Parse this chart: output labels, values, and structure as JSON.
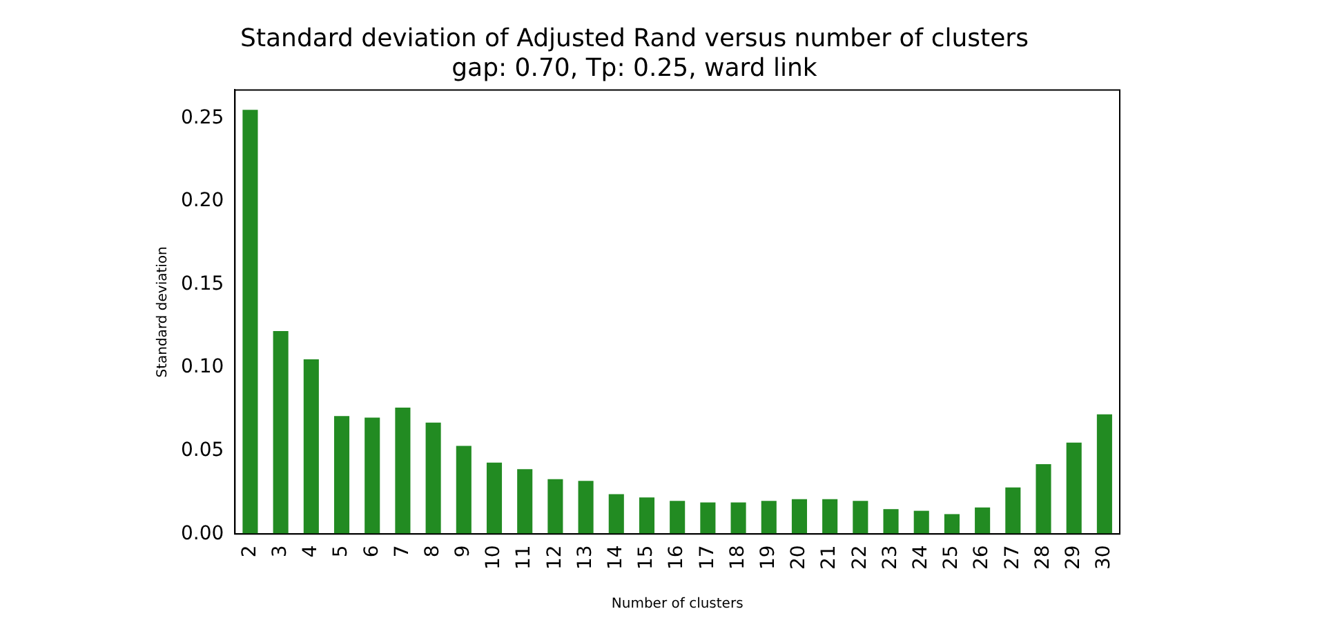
{
  "chart_data": {
    "type": "bar",
    "title": "Standard deviation of Adjusted Rand versus number of clusters",
    "subtitle": "gap: 0.70, Tp: 0.25, ward link",
    "xlabel": "Number of clusters",
    "ylabel": "Standard deviation",
    "categories": [
      "2",
      "3",
      "4",
      "5",
      "6",
      "7",
      "8",
      "9",
      "10",
      "11",
      "12",
      "13",
      "14",
      "15",
      "16",
      "17",
      "18",
      "19",
      "20",
      "21",
      "22",
      "23",
      "24",
      "25",
      "26",
      "27",
      "28",
      "29",
      "30"
    ],
    "values": [
      0.255,
      0.122,
      0.105,
      0.071,
      0.07,
      0.076,
      0.067,
      0.053,
      0.043,
      0.039,
      0.033,
      0.032,
      0.024,
      0.022,
      0.02,
      0.019,
      0.019,
      0.02,
      0.021,
      0.021,
      0.02,
      0.015,
      0.014,
      0.012,
      0.016,
      0.028,
      0.042,
      0.055,
      0.072
    ],
    "color": "#228b22",
    "ylim": [
      0,
      0.267
    ],
    "yticks": [
      {
        "value": 0,
        "label": "0.00"
      },
      {
        "value": 0.05,
        "label": "0.05"
      },
      {
        "value": 0.1,
        "label": "0.10"
      },
      {
        "value": 0.15,
        "label": "0.15"
      },
      {
        "value": 0.2,
        "label": "0.20"
      },
      {
        "value": 0.25,
        "label": "0.25"
      }
    ],
    "grid": false,
    "legend": false
  }
}
